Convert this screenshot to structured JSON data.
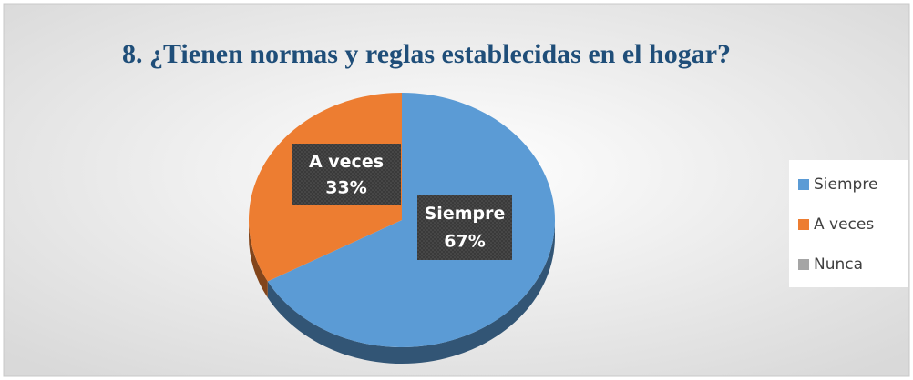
{
  "chart_data": {
    "type": "pie",
    "title": "8.  ¿Tienen normas y reglas establecidas en el hogar?",
    "categories": [
      "Siempre",
      "A veces",
      "Nunca"
    ],
    "values": [
      67,
      33,
      0
    ],
    "value_labels": [
      "67%",
      "33%",
      null
    ],
    "colors": [
      "#5b9bd5",
      "#ed7d31",
      "#a5a5a5"
    ],
    "legend": "right"
  }
}
